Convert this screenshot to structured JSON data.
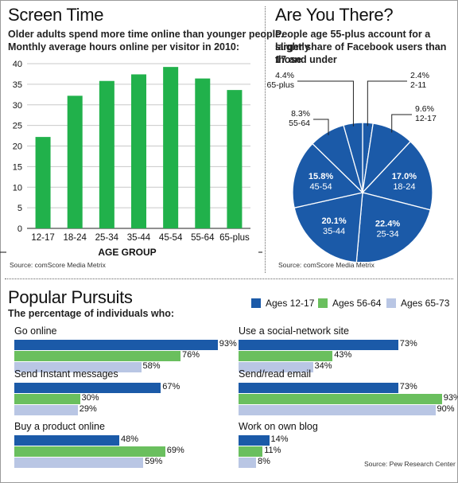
{
  "screen_time": {
    "title": "Screen Time",
    "subtitle_line1": "Older adults spend more time online than younger people.",
    "subtitle_line2": "Monthly average hours online per visitor in 2010:",
    "source": "Source: comScore Media Metrix"
  },
  "facebook": {
    "title": "Are You There?",
    "subtitle_line1": "People age 55-plus account for a slightly",
    "subtitle_line2": "larger share of Facebook users than those",
    "subtitle_line3": "17 and under",
    "source": "Source: comScore Media Metrix"
  },
  "pursuits": {
    "title": "Popular Pursuits",
    "subtitle": "The percentage of individuals who:",
    "source": "Source: Pew Research Center",
    "legend": [
      "Ages 12-17",
      "Ages 56-64",
      "Ages 65-73"
    ]
  },
  "colors": {
    "green": "#21b14b",
    "blue": "#1b5aa8",
    "light_green": "#6abf5e",
    "light_blue": "#b9c6e4"
  },
  "chart_data": [
    {
      "type": "bar",
      "title": "Screen Time",
      "xlabel": "AGE GROUP",
      "ylabel": "",
      "categories": [
        "12-17",
        "18-24",
        "25-34",
        "35-44",
        "45-54",
        "55-64",
        "65-plus"
      ],
      "values": [
        22.2,
        32.2,
        35.8,
        37.4,
        39.2,
        36.4,
        33.6
      ],
      "ylim": [
        0,
        40
      ],
      "yticks": [
        0,
        5,
        10,
        15,
        20,
        25,
        30,
        35,
        40
      ],
      "grid": true
    },
    {
      "type": "pie",
      "title": "Are You There?",
      "categories": [
        "2-11",
        "12-17",
        "18-24",
        "25-34",
        "35-44",
        "45-54",
        "55-64",
        "65-plus"
      ],
      "values": [
        2.4,
        9.6,
        17.0,
        22.4,
        20.1,
        15.8,
        8.3,
        4.4
      ],
      "labels": [
        "2.4%",
        "9.6%",
        "17.0%",
        "22.4%",
        "20.1%",
        "15.8%",
        "8.3%",
        "4.4%"
      ]
    },
    {
      "type": "bar",
      "title": "Popular Pursuits",
      "orientation": "horizontal",
      "categories": [
        "Go online",
        "Send instant messages",
        "Buy a product online",
        "Use a social-network site",
        "Send/read email",
        "Work on own blog"
      ],
      "category_labels": [
        "Go online",
        "Send Instant messages",
        "Buy a product online",
        "Use a social-network site",
        "Send/read email",
        "Work on own blog"
      ],
      "series": [
        {
          "name": "Ages 12-17",
          "values": [
            93,
            67,
            48,
            73,
            73,
            14
          ]
        },
        {
          "name": "Ages 56-64",
          "values": [
            76,
            30,
            69,
            43,
            93,
            11
          ]
        },
        {
          "name": "Ages 65-73",
          "values": [
            58,
            29,
            59,
            34,
            90,
            8
          ]
        }
      ],
      "xlim": [
        0,
        100
      ]
    }
  ]
}
